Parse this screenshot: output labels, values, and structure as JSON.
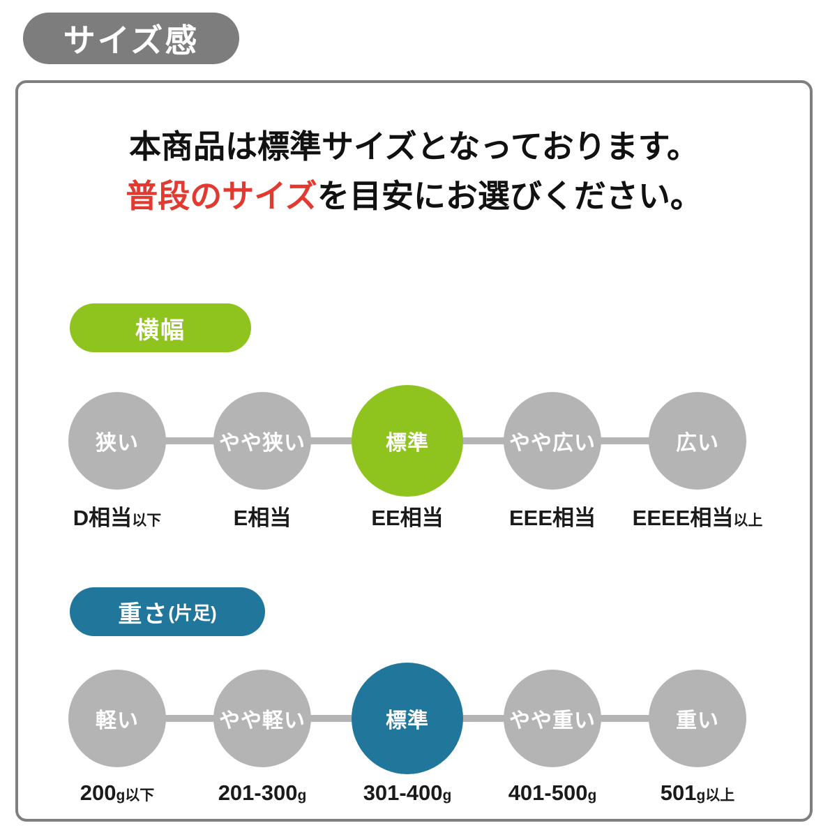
{
  "title_badge": "サイズ感",
  "intro": {
    "line1": "本商品は標準サイズとなっております。",
    "line2_highlight": "普段のサイズ",
    "line2_rest": "を目安にお選びください。"
  },
  "width_section": {
    "pill": "横幅",
    "pill_suffix": "",
    "active_index": 2,
    "scale": [
      {
        "circle": "狭い",
        "label_main": "D相当",
        "label_small": "以下"
      },
      {
        "circle": "やや狭い",
        "label_main": "E相当",
        "label_small": ""
      },
      {
        "circle": "標準",
        "label_main": "EE相当",
        "label_small": ""
      },
      {
        "circle": "やや広い",
        "label_main": "EEE相当",
        "label_small": ""
      },
      {
        "circle": "広い",
        "label_main": "EEEE相当",
        "label_small": "以上"
      }
    ]
  },
  "weight_section": {
    "pill": "重さ",
    "pill_suffix": "(片足)",
    "active_index": 2,
    "scale": [
      {
        "circle": "軽い",
        "label_main": "200",
        "label_small": "g以下"
      },
      {
        "circle": "やや軽い",
        "label_main": "201-300",
        "label_small": "g"
      },
      {
        "circle": "標準",
        "label_main": "301-400",
        "label_small": "g"
      },
      {
        "circle": "やや重い",
        "label_main": "401-500",
        "label_small": "g"
      },
      {
        "circle": "重い",
        "label_main": "501",
        "label_small": "g以上"
      }
    ]
  },
  "colors": {
    "badge_gray": "#7d7d7d",
    "border_gray": "#7f7f7f",
    "circle_gray": "#b4b4b4",
    "accent_green": "#8fc31e",
    "accent_teal": "#21769b",
    "highlight_red": "#e23a30"
  }
}
